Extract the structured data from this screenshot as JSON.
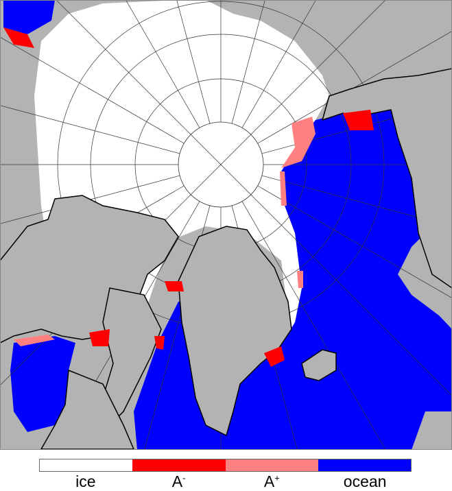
{
  "colors": {
    "land": "#b3b3b3",
    "ice": "#ffffff",
    "a_minus": "#ff0000",
    "a_plus": "#ff8080",
    "ocean": "#0000ff",
    "coast": "#000000"
  },
  "legend": [
    {
      "label": "ice",
      "sup": "",
      "color": "#ffffff"
    },
    {
      "label": "A",
      "sup": "-",
      "color": "#ff0000"
    },
    {
      "label": "A",
      "sup": "+",
      "color": "#ff8080"
    },
    {
      "label": "ocean",
      "sup": "",
      "color": "#0000ff"
    }
  ]
}
